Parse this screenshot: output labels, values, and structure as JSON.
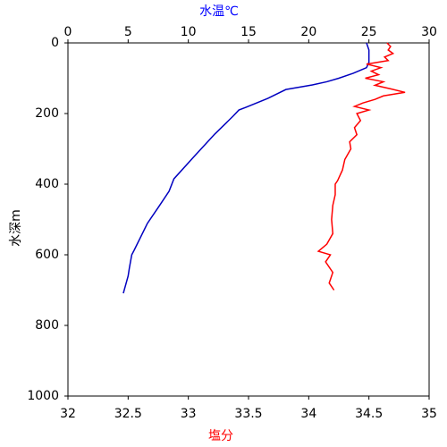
{
  "chart_data": {
    "type": "line",
    "xlabel": "水温℃",
    "x2label": "塩分",
    "ylabel": "水深m",
    "xlim": [
      0,
      30
    ],
    "xticks": [
      0,
      5,
      10,
      15,
      20,
      25,
      30
    ],
    "x2lim": [
      32,
      35
    ],
    "x2ticks": [
      32,
      32.5,
      33,
      33.5,
      34,
      34.5,
      35
    ],
    "ylim": [
      0,
      1000
    ],
    "yticks": [
      0,
      200,
      400,
      600,
      800,
      1000
    ],
    "y_inverted": true,
    "xlabel_color": "#0000ff",
    "x2label_color": "#ff0000",
    "series": [
      {
        "name": "水温",
        "color": "#0000c0",
        "axis": "x",
        "depth": [
          0,
          20,
          40,
          55,
          70,
          86,
          100,
          110,
          119,
          132,
          157,
          182,
          190,
          208,
          258,
          321,
          385,
          420,
          461,
          511,
          587,
          600,
          638,
          660,
          709
        ],
        "values": [
          24.8,
          25.0,
          25.0,
          25.0,
          24.8,
          23.7,
          22.5,
          21.5,
          20.3,
          18.1,
          16.6,
          14.8,
          14.2,
          13.7,
          12.2,
          10.5,
          8.8,
          8.4,
          7.6,
          6.6,
          5.5,
          5.3,
          5.1,
          5.0,
          4.6
        ]
      },
      {
        "name": "塩分",
        "color": "#ff0000",
        "axis": "x2",
        "depth": [
          0,
          10,
          20,
          30,
          40,
          50,
          60,
          70,
          80,
          90,
          100,
          110,
          120,
          130,
          140,
          150,
          160,
          170,
          180,
          190,
          200,
          220,
          240,
          260,
          280,
          300,
          330,
          360,
          390,
          400,
          430,
          460,
          500,
          540,
          570,
          590,
          600,
          620,
          650,
          680,
          700
        ],
        "values": [
          34.65,
          34.68,
          34.66,
          34.7,
          34.63,
          34.66,
          34.48,
          34.6,
          34.52,
          34.58,
          34.47,
          34.62,
          34.55,
          34.68,
          34.8,
          34.62,
          34.55,
          34.45,
          34.38,
          34.5,
          34.4,
          34.43,
          34.38,
          34.4,
          34.34,
          34.35,
          34.3,
          34.28,
          34.24,
          34.22,
          34.22,
          34.2,
          34.19,
          34.2,
          34.15,
          34.08,
          34.18,
          34.14,
          34.2,
          34.17,
          34.21
        ]
      }
    ]
  }
}
